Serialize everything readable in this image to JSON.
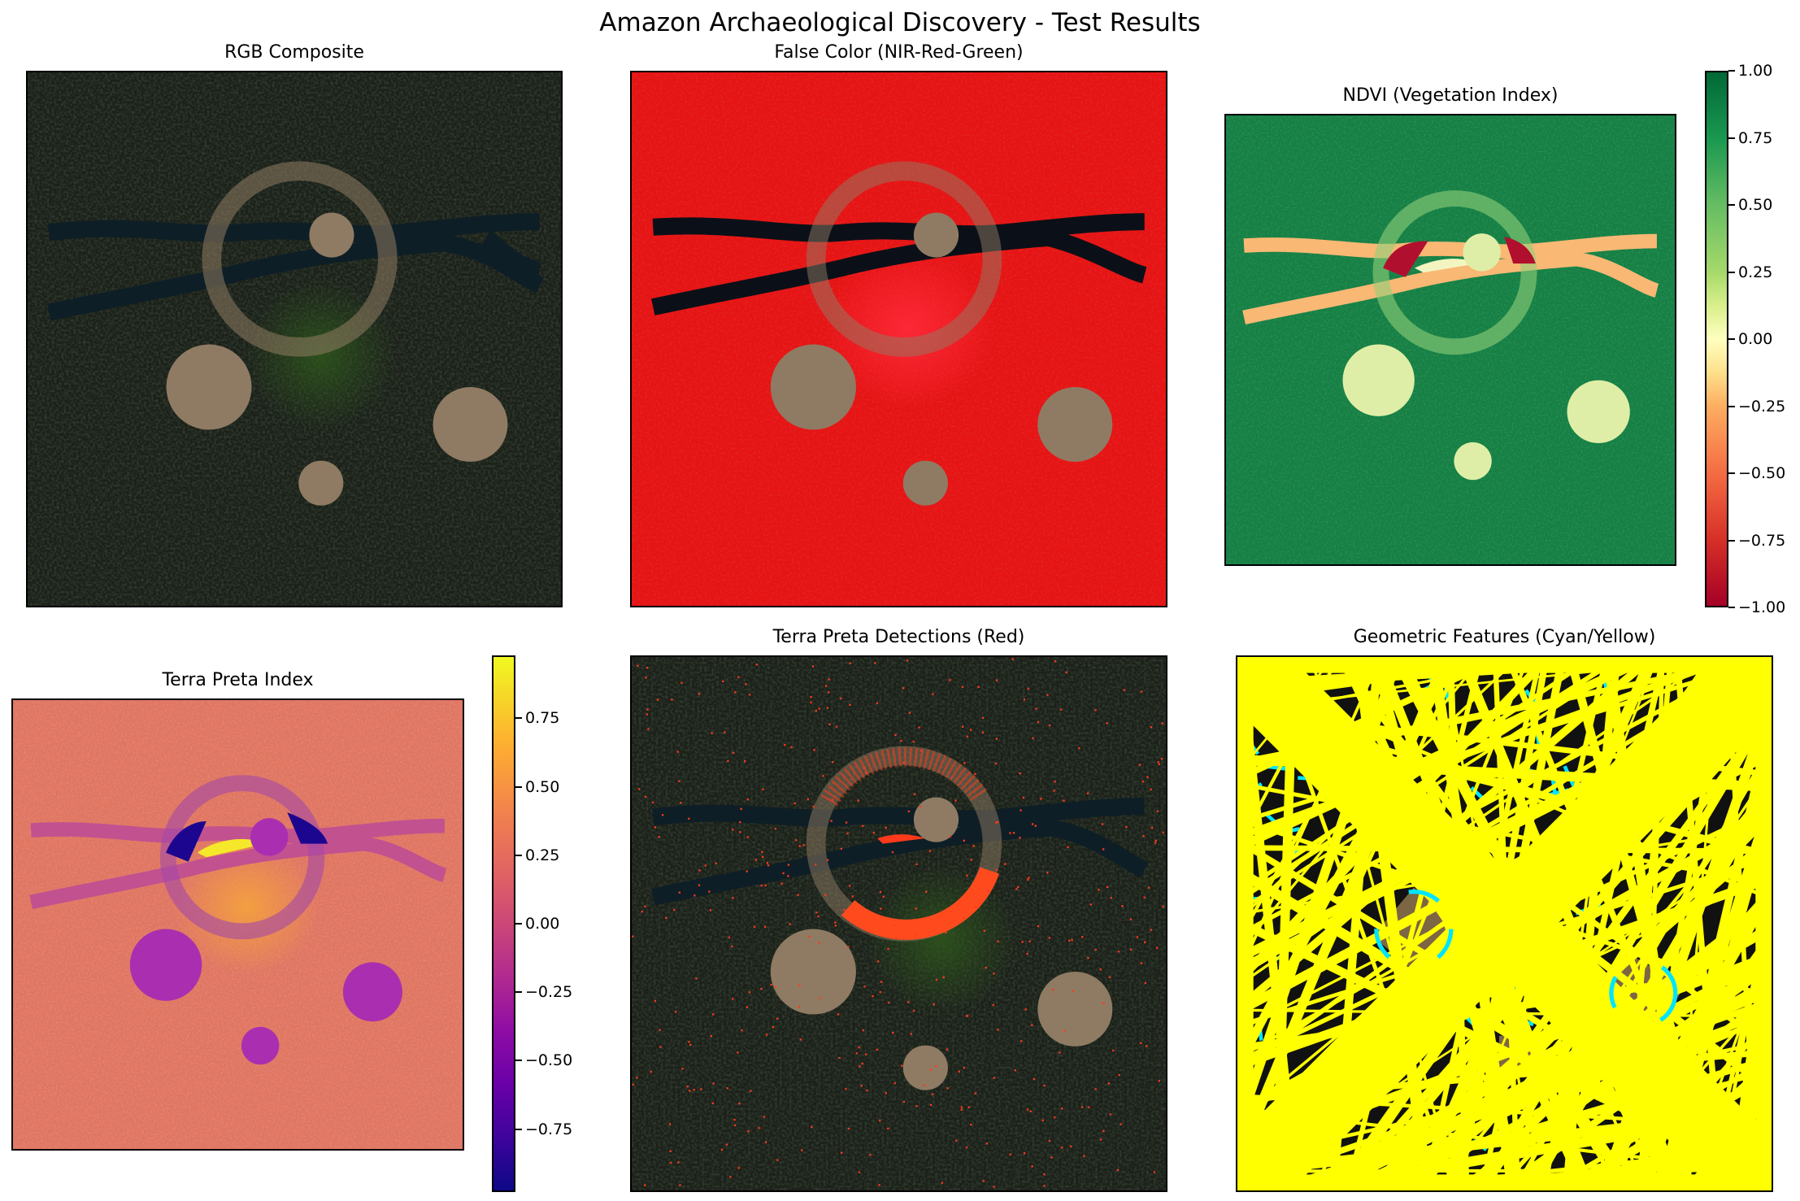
{
  "figure": {
    "title": "Amazon Archaeological Discovery - Test Results"
  },
  "panels": {
    "rgb": {
      "title": "RGB Composite"
    },
    "false_color": {
      "title": "False Color (NIR-Red-Green)"
    },
    "ndvi": {
      "title": "NDVI (Vegetation Index)"
    },
    "terra_preta": {
      "title": "Terra Preta Index"
    },
    "detections": {
      "title": "Terra Preta Detections (Red)"
    },
    "geometric": {
      "title": "Geometric Features (Cyan/Yellow)"
    }
  },
  "colors": {
    "rgb_background": "#1b2119",
    "soil_patch": "#8f7b63",
    "river": "#0e1e26",
    "false_color_background": "#e61414",
    "ndvi_background": "#177f44",
    "ndvi_river": "#f9b874",
    "ndvi_patch": "#dfeea6",
    "ndvi_negative": "#b10f2e",
    "terra_background": "#e07662",
    "terra_river": "#c25190",
    "terra_patch": "#a92fb0",
    "terra_low": "#1d068f",
    "terra_high": "#f5e82a",
    "detection_red": "#ff3a1a",
    "geometric_yellow": "#ffff00",
    "geometric_cyan": "#00e5ff",
    "geometric_black": "#111111"
  },
  "chart_data": [
    {
      "type": "heatmap",
      "title": "RGB Composite",
      "features": [
        "ring",
        "river",
        "soil patches"
      ]
    },
    {
      "type": "heatmap",
      "title": "False Color (NIR-Red-Green)",
      "features": [
        "ring",
        "river",
        "soil patches"
      ]
    },
    {
      "type": "heatmap",
      "title": "NDVI (Vegetation Index)",
      "colormap": "RdYlGn",
      "colorbar": {
        "range": [
          -1.0,
          1.0
        ],
        "ticks": [
          1.0,
          0.75,
          0.5,
          0.25,
          0.0,
          -0.25,
          -0.5,
          -0.75,
          -1.0
        ],
        "tick_labels": [
          "1.00",
          "0.75",
          "0.50",
          "0.25",
          "0.00",
          "−0.25",
          "−0.50",
          "−0.75",
          "−1.00"
        ]
      }
    },
    {
      "type": "heatmap",
      "title": "Terra Preta Index",
      "colormap": "plasma",
      "colorbar": {
        "range": [
          -0.98,
          0.98
        ],
        "ticks": [
          0.75,
          0.5,
          0.25,
          0.0,
          -0.25,
          -0.5,
          -0.75
        ],
        "tick_labels": [
          "0.75",
          "0.50",
          "0.25",
          "0.00",
          "−0.25",
          "−0.50",
          "−0.75"
        ]
      }
    },
    {
      "type": "heatmap",
      "title": "Terra Preta Detections (Red)",
      "features": [
        "ring",
        "river",
        "soil patches",
        "detection points"
      ]
    },
    {
      "type": "heatmap",
      "title": "Geometric Features (Cyan/Yellow)",
      "features": [
        "line detections",
        "circle detections"
      ]
    }
  ]
}
